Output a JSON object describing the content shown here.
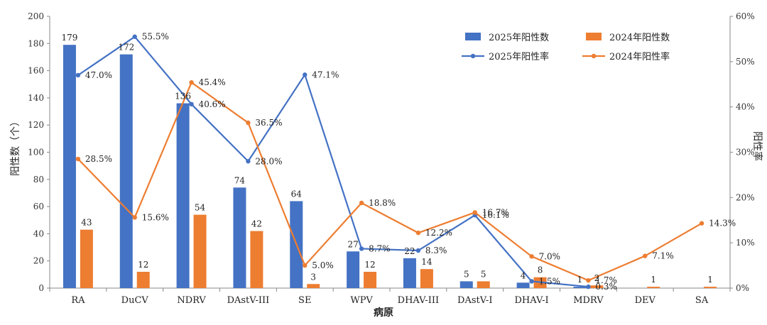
{
  "chart_data": {
    "type": "bar",
    "categories": [
      "RA",
      "DuCV",
      "NDRV",
      "DAstV-III",
      "SE",
      "WPV",
      "DHAV-III",
      "DAstV-I",
      "DHAV-I",
      "MDRV",
      "DEV",
      "SA"
    ],
    "bar_series": [
      {
        "name": "2025年阳性数",
        "color": "#4472C4",
        "values": [
          179,
          172,
          136,
          74,
          64,
          27,
          22,
          5,
          4,
          1,
          null,
          null
        ]
      },
      {
        "name": "2024年阳性数",
        "color": "#ED7D31",
        "values": [
          43,
          12,
          54,
          42,
          3,
          12,
          14,
          5,
          8,
          2,
          1,
          1
        ]
      }
    ],
    "line_series": [
      {
        "name": "2025年阳性率",
        "color": "#4472C4",
        "values": [
          47.0,
          55.5,
          40.6,
          28.0,
          47.1,
          8.7,
          8.3,
          16.1,
          1.5,
          0.3,
          null,
          null
        ],
        "labels": [
          "47.0%",
          "55.5%",
          "40.6%",
          "28.0%",
          "47.1%",
          "8.7%",
          "8.3%",
          "16.1%",
          "1.5%",
          "0.3%",
          null,
          null
        ]
      },
      {
        "name": "2024年阳性率",
        "color": "#ED7D31",
        "values": [
          28.5,
          15.6,
          45.4,
          36.5,
          5.0,
          18.8,
          12.2,
          16.7,
          7.0,
          1.7,
          7.1,
          14.3
        ],
        "labels": [
          "28.5%",
          "15.6%",
          "45.4%",
          "36.5%",
          "5.0%",
          "18.8%",
          "12.2%",
          "16.7%",
          "7.0%",
          "1.7%",
          "7.1%",
          "14.3%"
        ]
      }
    ],
    "xlabel": "病原",
    "ylabel": "阳性数（个）",
    "y2label": "阳性率",
    "ylim": [
      0,
      200
    ],
    "yticks": [
      "0",
      "20",
      "40",
      "60",
      "80",
      "100",
      "120",
      "140",
      "160",
      "180",
      "200"
    ],
    "y2lim": [
      0,
      60
    ],
    "y2ticks": [
      "0%",
      "10%",
      "20%",
      "30%",
      "40%",
      "50%",
      "60%"
    ],
    "legend_position": "top-right",
    "grid": false
  }
}
